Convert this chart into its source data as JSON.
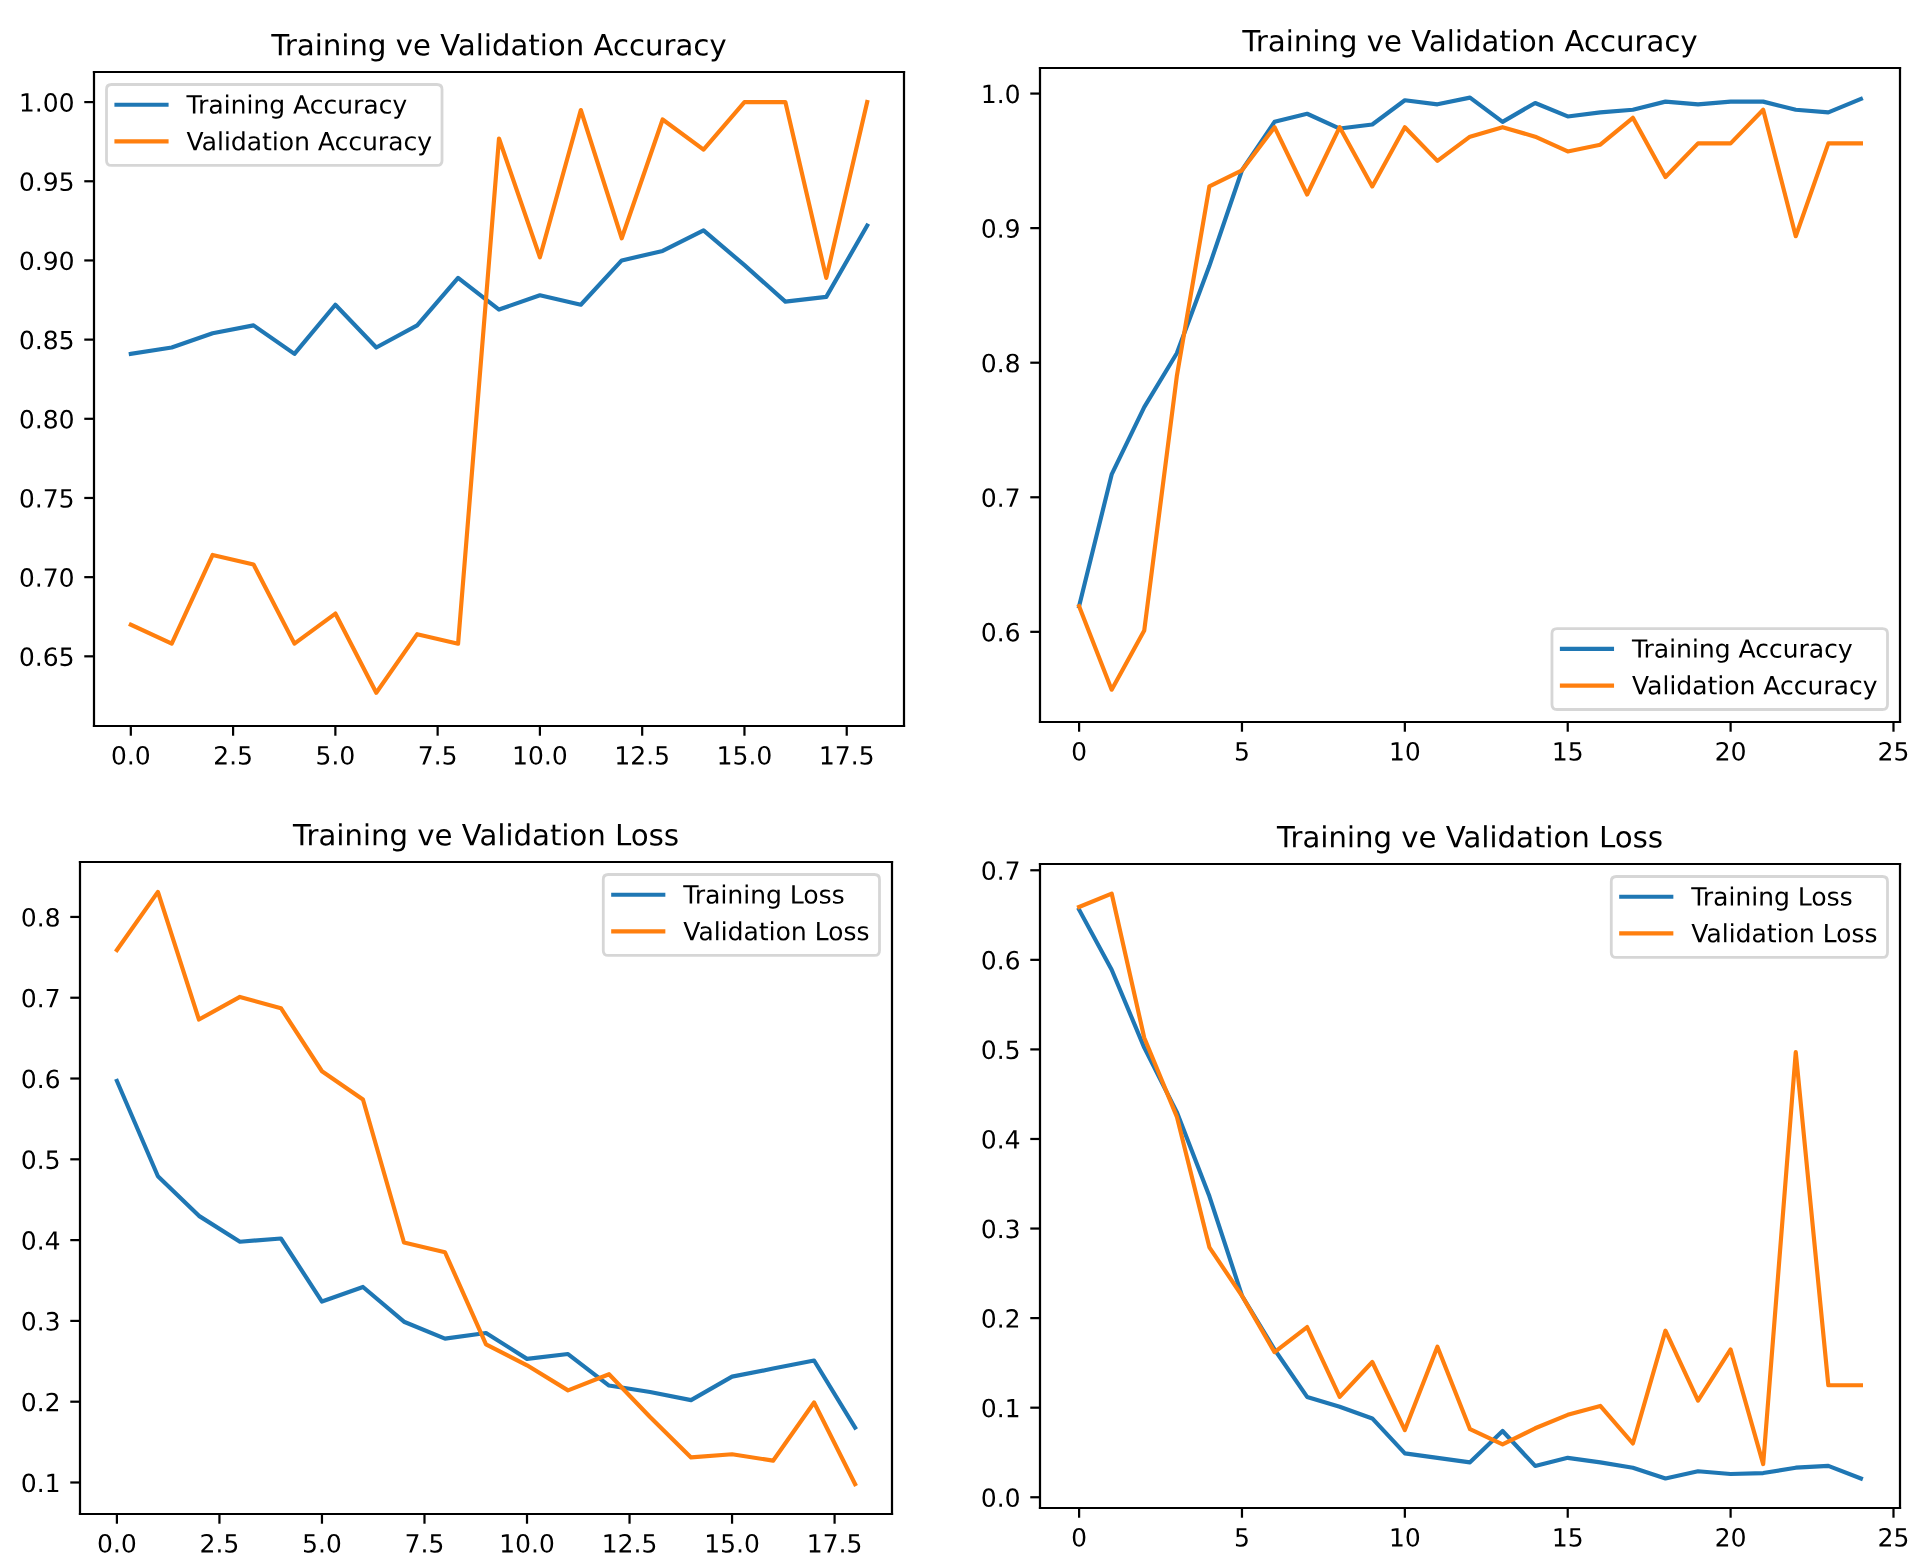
{
  "chart_data": [
    {
      "type": "line",
      "title": "Training ve Validation Accuracy",
      "x": [
        0,
        1,
        2,
        3,
        4,
        5,
        6,
        7,
        8,
        9,
        10,
        11,
        12,
        13,
        14,
        15,
        16,
        17,
        18
      ],
      "series": [
        {
          "name": "Training Accuracy",
          "color": "#1f77b4",
          "values": [
            0.841,
            0.845,
            0.854,
            0.859,
            0.841,
            0.872,
            0.845,
            0.859,
            0.889,
            0.869,
            0.878,
            0.872,
            0.9,
            0.906,
            0.919,
            0.897,
            0.874,
            0.877,
            0.922
          ]
        },
        {
          "name": "Validation Accuracy",
          "color": "#ff7f0e",
          "values": [
            0.67,
            0.658,
            0.714,
            0.708,
            0.658,
            0.677,
            0.627,
            0.664,
            0.658,
            0.977,
            0.902,
            0.995,
            0.914,
            0.989,
            0.97,
            1.0,
            1.0,
            0.889,
            1.0
          ]
        }
      ],
      "xlim": [
        -0.9,
        18.9
      ],
      "ylim": [
        0.606,
        1.019
      ],
      "xticks": [
        {
          "value": 0,
          "label": "0.0"
        },
        2.5,
        {
          "value": 5,
          "label": "5.0"
        },
        7.5,
        {
          "value": 10,
          "label": "10.0"
        },
        12.5,
        {
          "value": 15,
          "label": "15.0"
        },
        17.5
      ],
      "yticks": [
        0.65,
        {
          "value": 0.7,
          "label": "0.70"
        },
        0.75,
        {
          "value": 0.8,
          "label": "0.80"
        },
        0.85,
        {
          "value": 0.9,
          "label": "0.90"
        },
        0.95,
        {
          "value": 1,
          "label": "1.00"
        }
      ],
      "legend": "top left",
      "grid": false
    },
    {
      "type": "line",
      "title": "Training ve Validation Accuracy",
      "x": [
        0,
        1,
        2,
        3,
        4,
        5,
        6,
        7,
        8,
        9,
        10,
        11,
        12,
        13,
        14,
        15,
        16,
        17,
        18,
        19,
        20,
        21,
        22,
        23,
        24
      ],
      "series": [
        {
          "name": "Training Accuracy",
          "color": "#1f77b4",
          "values": [
            0.619,
            0.717,
            0.767,
            0.807,
            0.872,
            0.943,
            0.979,
            0.985,
            0.974,
            0.977,
            0.995,
            0.992,
            0.997,
            0.979,
            0.993,
            0.983,
            0.986,
            0.988,
            0.994,
            0.992,
            0.994,
            0.994,
            0.988,
            0.986,
            0.996
          ]
        },
        {
          "name": "Validation Accuracy",
          "color": "#ff7f0e",
          "values": [
            0.619,
            0.557,
            0.601,
            0.79,
            0.931,
            0.943,
            0.975,
            0.925,
            0.975,
            0.931,
            0.975,
            0.95,
            0.968,
            0.975,
            0.968,
            0.957,
            0.962,
            0.982,
            0.938,
            0.963,
            0.963,
            0.988,
            0.894,
            0.963,
            0.963
          ]
        }
      ],
      "xlim": [
        -1.2,
        25.2
      ],
      "ylim": [
        0.533,
        1.019
      ],
      "xticks": [
        0,
        5,
        10,
        15,
        20,
        25
      ],
      "yticks": [
        0.6,
        0.7,
        0.8,
        0.9,
        {
          "value": 1,
          "label": "1.0"
        }
      ],
      "legend": "bottom right",
      "grid": false
    },
    {
      "type": "line",
      "title": "Training ve Validation Loss",
      "x": [
        0,
        1,
        2,
        3,
        4,
        5,
        6,
        7,
        8,
        9,
        10,
        11,
        12,
        13,
        14,
        15,
        16,
        17,
        18
      ],
      "series": [
        {
          "name": "Training Loss",
          "color": "#1f77b4",
          "values": [
            0.597,
            0.479,
            0.43,
            0.398,
            0.402,
            0.324,
            0.342,
            0.299,
            0.278,
            0.285,
            0.253,
            0.259,
            0.22,
            0.212,
            0.202,
            0.231,
            0.241,
            0.251,
            0.168
          ]
        },
        {
          "name": "Validation Loss",
          "color": "#ff7f0e",
          "values": [
            0.759,
            0.831,
            0.673,
            0.701,
            0.687,
            0.609,
            0.574,
            0.397,
            0.385,
            0.271,
            0.245,
            0.214,
            0.234,
            0.181,
            0.131,
            0.135,
            0.127,
            0.199,
            0.098
          ]
        }
      ],
      "xlim": [
        -0.9,
        18.9
      ],
      "ylim": [
        0.061,
        0.868
      ],
      "xticks": [
        {
          "value": 0,
          "label": "0.0"
        },
        2.5,
        {
          "value": 5,
          "label": "5.0"
        },
        7.5,
        {
          "value": 10,
          "label": "10.0"
        },
        12.5,
        {
          "value": 15,
          "label": "15.0"
        },
        17.5
      ],
      "yticks": [
        0.1,
        0.2,
        0.3,
        0.4,
        0.5,
        0.6,
        0.7,
        0.8
      ],
      "legend": "top right",
      "grid": false
    },
    {
      "type": "line",
      "title": "Training ve Validation Loss",
      "x": [
        0,
        1,
        2,
        3,
        4,
        5,
        6,
        7,
        8,
        9,
        10,
        11,
        12,
        13,
        14,
        15,
        16,
        17,
        18,
        19,
        20,
        21,
        22,
        23,
        24
      ],
      "series": [
        {
          "name": "Training Loss",
          "color": "#1f77b4",
          "values": [
            0.656,
            0.589,
            0.502,
            0.43,
            0.336,
            0.225,
            0.165,
            0.112,
            0.101,
            0.088,
            0.049,
            0.044,
            0.039,
            0.074,
            0.035,
            0.044,
            0.039,
            0.033,
            0.021,
            0.029,
            0.026,
            0.027,
            0.033,
            0.035,
            0.021
          ]
        },
        {
          "name": "Validation Loss",
          "color": "#ff7f0e",
          "values": [
            0.659,
            0.674,
            0.513,
            0.425,
            0.279,
            0.225,
            0.162,
            0.19,
            0.112,
            0.151,
            0.075,
            0.168,
            0.076,
            0.059,
            0.077,
            0.092,
            0.102,
            0.06,
            0.186,
            0.108,
            0.165,
            0.037,
            0.497,
            0.125,
            0.125
          ]
        }
      ],
      "xlim": [
        -1.2,
        25.2
      ],
      "ylim": [
        -0.012,
        0.707
      ],
      "xticks": [
        0,
        5,
        10,
        15,
        20,
        25
      ],
      "yticks": [
        {
          "value": 0,
          "label": "0.0"
        },
        0.1,
        0.2,
        0.3,
        0.4,
        0.5,
        0.6,
        0.7
      ],
      "legend": "top right",
      "grid": false
    }
  ]
}
